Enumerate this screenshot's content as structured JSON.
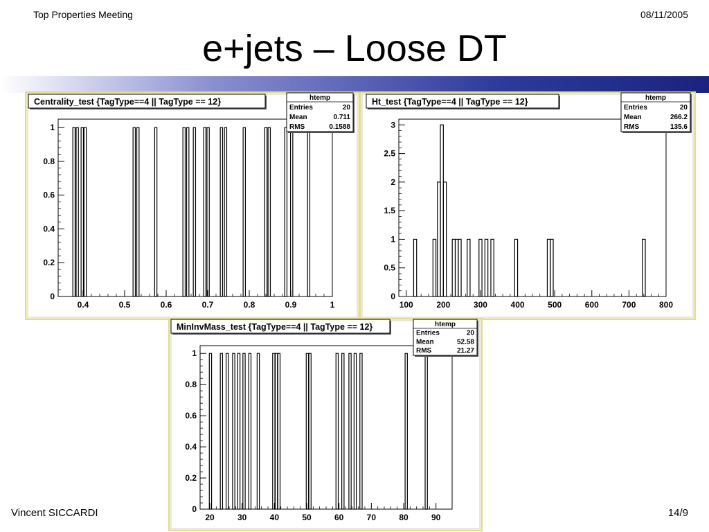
{
  "header": {
    "left": "Top Properties Meeting",
    "right": "08/11/2005"
  },
  "slide_title": "e+jets – Loose DT",
  "footer": {
    "left": "Vincent SICCARDI",
    "right": "14/9"
  },
  "colors": {
    "panel_border": "#e4dc8a",
    "band_dark": "#1a237e"
  },
  "chart_data": [
    {
      "type": "bar",
      "title": "Centrality_test {TagType==4 || TagType == 12}",
      "stats": {
        "name": "htemp",
        "rows": [
          [
            "Entries",
            "20"
          ],
          [
            "Mean",
            "0.711"
          ],
          [
            "RMS",
            "0.1588"
          ]
        ]
      },
      "xlim": [
        0.34,
        1.0
      ],
      "ylim": [
        0,
        1.05
      ],
      "xticks": [
        0.4,
        0.5,
        0.6,
        0.7,
        0.8,
        0.9,
        1
      ],
      "xtick_labels": [
        "0.4",
        "0.5",
        "0.6",
        "0.7",
        "0.8",
        "0.9",
        "1"
      ],
      "yticks": [
        0,
        0.2,
        0.4,
        0.6,
        0.8,
        1
      ],
      "ytick_labels": [
        "0",
        "0.2",
        "0.4",
        "0.6",
        "0.8",
        "1"
      ],
      "bin_width": 0.0055,
      "bins": [
        {
          "x": 0.378,
          "y": 1
        },
        {
          "x": 0.386,
          "y": 1
        },
        {
          "x": 0.398,
          "y": 1
        },
        {
          "x": 0.405,
          "y": 1
        },
        {
          "x": 0.523,
          "y": 1
        },
        {
          "x": 0.532,
          "y": 1
        },
        {
          "x": 0.575,
          "y": 1
        },
        {
          "x": 0.643,
          "y": 1
        },
        {
          "x": 0.652,
          "y": 1
        },
        {
          "x": 0.668,
          "y": 1
        },
        {
          "x": 0.693,
          "y": 1
        },
        {
          "x": 0.701,
          "y": 1
        },
        {
          "x": 0.733,
          "y": 1
        },
        {
          "x": 0.743,
          "y": 1
        },
        {
          "x": 0.788,
          "y": 1
        },
        {
          "x": 0.84,
          "y": 1
        },
        {
          "x": 0.848,
          "y": 1
        },
        {
          "x": 0.888,
          "y": 1
        },
        {
          "x": 0.902,
          "y": 1
        },
        {
          "x": 0.943,
          "y": 1
        }
      ]
    },
    {
      "type": "bar",
      "title": "Ht_test {TagType==4 || TagType == 12}",
      "stats": {
        "name": "htemp",
        "rows": [
          [
            "Entries",
            "20"
          ],
          [
            "Mean",
            "266.2"
          ],
          [
            "RMS",
            "135.6"
          ]
        ]
      },
      "xlim": [
        80,
        800
      ],
      "ylim": [
        0,
        3.1
      ],
      "xticks": [
        100,
        200,
        300,
        400,
        500,
        600,
        700,
        800
      ],
      "xtick_labels": [
        "100",
        "200",
        "300",
        "400",
        "500",
        "600",
        "700",
        "800"
      ],
      "yticks": [
        0,
        0.5,
        1,
        1.5,
        2,
        2.5,
        3
      ],
      "ytick_labels": [
        "0",
        "0.5",
        "1",
        "1.5",
        "2",
        "2.5",
        "3"
      ],
      "bin_width": 8,
      "bins": [
        {
          "x": 124,
          "y": 1
        },
        {
          "x": 176,
          "y": 1
        },
        {
          "x": 188,
          "y": 2
        },
        {
          "x": 196,
          "y": 3
        },
        {
          "x": 204,
          "y": 2
        },
        {
          "x": 228,
          "y": 1
        },
        {
          "x": 236,
          "y": 1
        },
        {
          "x": 244,
          "y": 1
        },
        {
          "x": 268,
          "y": 1
        },
        {
          "x": 300,
          "y": 1
        },
        {
          "x": 316,
          "y": 1
        },
        {
          "x": 332,
          "y": 1
        },
        {
          "x": 396,
          "y": 1
        },
        {
          "x": 484,
          "y": 1
        },
        {
          "x": 492,
          "y": 1
        },
        {
          "x": 740,
          "y": 1
        }
      ]
    },
    {
      "type": "bar",
      "title": "MinInvMass_test {TagType==4 || TagType == 12}",
      "stats": {
        "name": "htemp",
        "rows": [
          [
            "Entries",
            "20"
          ],
          [
            "Mean",
            "52.58"
          ],
          [
            "RMS",
            "21.27"
          ]
        ]
      },
      "xlim": [
        17,
        95
      ],
      "ylim": [
        0,
        1.05
      ],
      "xticks": [
        20,
        30,
        40,
        50,
        60,
        70,
        80,
        90
      ],
      "xtick_labels": [
        "20",
        "30",
        "40",
        "50",
        "60",
        "70",
        "80",
        "90"
      ],
      "yticks": [
        0,
        0.2,
        0.4,
        0.6,
        0.8,
        1
      ],
      "ytick_labels": [
        "0",
        "0.2",
        "0.4",
        "0.6",
        "0.8",
        "1"
      ],
      "bin_width": 0.7,
      "bins": [
        {
          "x": 20.2,
          "y": 1
        },
        {
          "x": 23.6,
          "y": 1
        },
        {
          "x": 25.4,
          "y": 1
        },
        {
          "x": 27.4,
          "y": 1
        },
        {
          "x": 29.0,
          "y": 1
        },
        {
          "x": 30.6,
          "y": 1
        },
        {
          "x": 32.4,
          "y": 1
        },
        {
          "x": 35.0,
          "y": 1
        },
        {
          "x": 39.8,
          "y": 1
        },
        {
          "x": 40.6,
          "y": 1
        },
        {
          "x": 41.4,
          "y": 1
        },
        {
          "x": 50.2,
          "y": 1
        },
        {
          "x": 51.0,
          "y": 1
        },
        {
          "x": 59.4,
          "y": 1
        },
        {
          "x": 61.2,
          "y": 1
        },
        {
          "x": 63.4,
          "y": 1
        },
        {
          "x": 65.0,
          "y": 1
        },
        {
          "x": 66.8,
          "y": 1
        },
        {
          "x": 80.8,
          "y": 1
        },
        {
          "x": 87.0,
          "y": 1
        }
      ]
    }
  ]
}
